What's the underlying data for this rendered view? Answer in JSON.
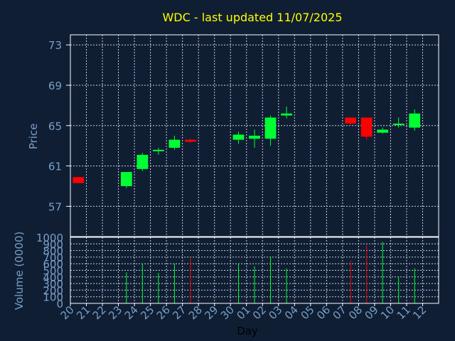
{
  "chart_data": [
    {
      "type": "candlestick",
      "title": "WDC - last updated 11/07/2025",
      "ylabel": "Price",
      "ylim": [
        54,
        74
      ],
      "yticks": [
        57,
        61,
        65,
        69,
        73
      ],
      "grid": true,
      "categories": [
        "20",
        "21",
        "22",
        "23",
        "24",
        "25",
        "26",
        "27",
        "28",
        "29",
        "30",
        "01",
        "02",
        "03",
        "04",
        "05",
        "06",
        "07",
        "08",
        "09",
        "10",
        "11",
        "12"
      ],
      "candles": [
        {
          "day": "20",
          "open": 59.9,
          "close": 59.3,
          "high": 59.9,
          "low": 59.3
        },
        {
          "day": "23",
          "open": 59.0,
          "close": 60.4,
          "high": 60.4,
          "low": 58.8
        },
        {
          "day": "24",
          "open": 60.7,
          "close": 62.1,
          "high": 62.3,
          "low": 60.5
        },
        {
          "day": "25",
          "open": 62.5,
          "close": 62.6,
          "high": 62.8,
          "low": 62.1
        },
        {
          "day": "26",
          "open": 62.8,
          "close": 63.6,
          "high": 64.0,
          "low": 62.6
        },
        {
          "day": "27",
          "open": 63.6,
          "close": 63.4,
          "high": 63.7,
          "low": 63.3
        },
        {
          "day": "30",
          "open": 63.6,
          "close": 64.1,
          "high": 64.4,
          "low": 63.2
        },
        {
          "day": "01",
          "open": 63.7,
          "close": 64.0,
          "high": 64.6,
          "low": 62.8
        },
        {
          "day": "02",
          "open": 63.7,
          "close": 65.8,
          "high": 66.0,
          "low": 63.0
        },
        {
          "day": "03",
          "open": 66.0,
          "close": 66.2,
          "high": 66.9,
          "low": 65.7
        },
        {
          "day": "07",
          "open": 65.8,
          "close": 65.2,
          "high": 65.8,
          "low": 65.1
        },
        {
          "day": "08",
          "open": 65.8,
          "close": 63.9,
          "high": 65.8,
          "low": 63.6
        },
        {
          "day": "09",
          "open": 64.3,
          "close": 64.6,
          "high": 64.8,
          "low": 64.2
        },
        {
          "day": "10",
          "open": 65.1,
          "close": 65.2,
          "high": 65.8,
          "low": 64.8
        },
        {
          "day": "11",
          "open": 64.8,
          "close": 66.2,
          "high": 66.6,
          "low": 64.5
        }
      ]
    },
    {
      "type": "bar",
      "ylabel": "Volume (0000)",
      "xlabel": "Day",
      "ylim": [
        0,
        1000
      ],
      "yticks": [
        0,
        100,
        200,
        300,
        400,
        500,
        600,
        700,
        800,
        900,
        1000
      ],
      "grid": true,
      "categories": [
        "20",
        "21",
        "22",
        "23",
        "24",
        "25",
        "26",
        "27",
        "28",
        "29",
        "30",
        "01",
        "02",
        "03",
        "04",
        "05",
        "06",
        "07",
        "08",
        "09",
        "10",
        "11",
        "12"
      ],
      "volumes": [
        {
          "day": "23",
          "value": 470,
          "direction": "up"
        },
        {
          "day": "24",
          "value": 600,
          "direction": "up"
        },
        {
          "day": "25",
          "value": 460,
          "direction": "up"
        },
        {
          "day": "26",
          "value": 600,
          "direction": "up"
        },
        {
          "day": "27",
          "value": 680,
          "direction": "down"
        },
        {
          "day": "30",
          "value": 600,
          "direction": "up"
        },
        {
          "day": "01",
          "value": 560,
          "direction": "up"
        },
        {
          "day": "02",
          "value": 710,
          "direction": "up"
        },
        {
          "day": "03",
          "value": 530,
          "direction": "up"
        },
        {
          "day": "07",
          "value": 650,
          "direction": "down"
        },
        {
          "day": "08",
          "value": 880,
          "direction": "down"
        },
        {
          "day": "09",
          "value": 930,
          "direction": "up"
        },
        {
          "day": "10",
          "value": 400,
          "direction": "up"
        },
        {
          "day": "11",
          "value": 530,
          "direction": "up"
        }
      ]
    }
  ],
  "colors": {
    "background": "#0f1e33",
    "frame": "#ffffff",
    "grid": "#c8d0da",
    "text": "#7a9ec8",
    "title": "#ffff00",
    "up": "#00ff33",
    "down": "#ff0000"
  }
}
